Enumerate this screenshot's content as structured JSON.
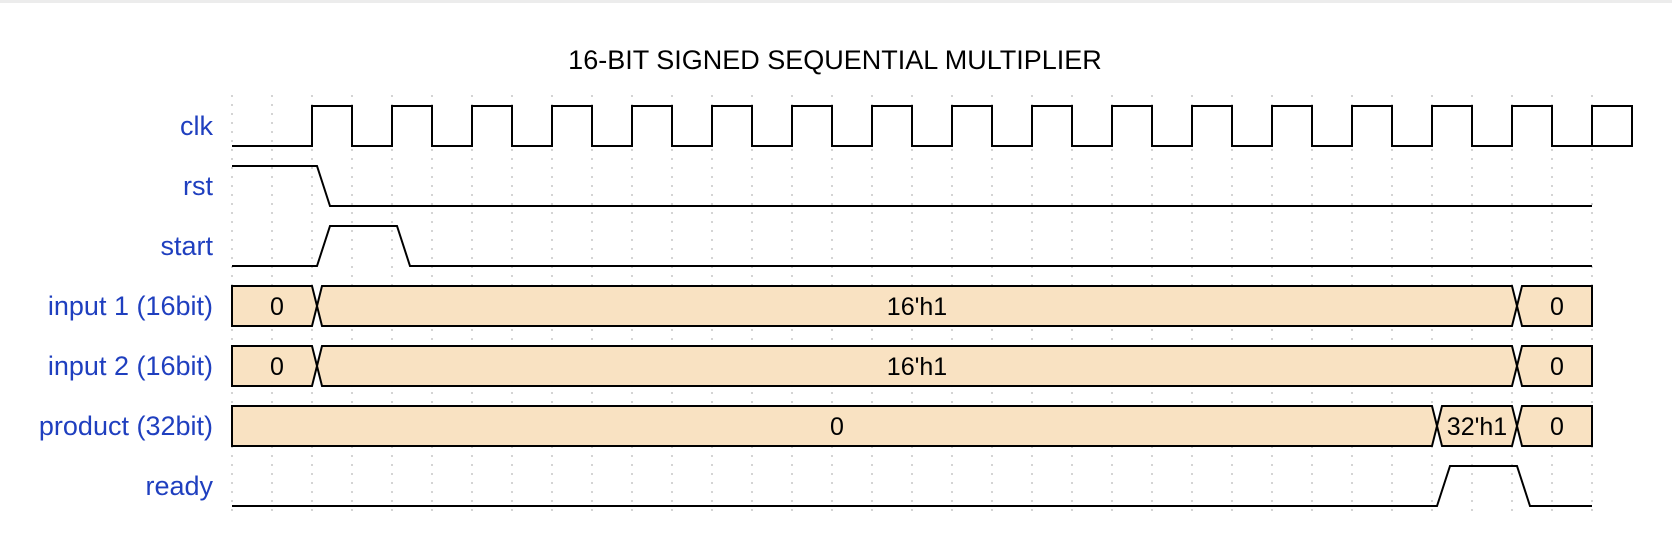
{
  "title": "16-BIT SIGNED SEQUENTIAL MULTIPLIER",
  "colors": {
    "bus_fill": "#f9e2c2",
    "label": "#1f3fbf",
    "trace": "#000000"
  },
  "timeline": {
    "cycles": 17
  },
  "signals": [
    {
      "name": "clk",
      "kind": "clock"
    },
    {
      "name": "rst",
      "kind": "bit",
      "wave": [
        1,
        0,
        0,
        0,
        0,
        0,
        0,
        0,
        0,
        0,
        0,
        0,
        0,
        0,
        0,
        0,
        0
      ]
    },
    {
      "name": "start",
      "kind": "bit",
      "wave": [
        0,
        1,
        0,
        0,
        0,
        0,
        0,
        0,
        0,
        0,
        0,
        0,
        0,
        0,
        0,
        0,
        0
      ]
    },
    {
      "name": "input 1 (16bit)",
      "kind": "bus",
      "segments": [
        {
          "start": 0,
          "end": 1,
          "value": "0"
        },
        {
          "start": 1,
          "end": 16,
          "value": "16'h1"
        },
        {
          "start": 16,
          "end": 17,
          "value": "0"
        }
      ]
    },
    {
      "name": "input 2 (16bit)",
      "kind": "bus",
      "segments": [
        {
          "start": 0,
          "end": 1,
          "value": "0"
        },
        {
          "start": 1,
          "end": 16,
          "value": "16'h1"
        },
        {
          "start": 16,
          "end": 17,
          "value": "0"
        }
      ]
    },
    {
      "name": "product (32bit)",
      "kind": "bus",
      "segments": [
        {
          "start": 0,
          "end": 15,
          "value": "0"
        },
        {
          "start": 15,
          "end": 16,
          "value": "32'h1"
        },
        {
          "start": 16,
          "end": 17,
          "value": "0"
        }
      ]
    },
    {
      "name": "ready",
      "kind": "bit",
      "wave": [
        0,
        0,
        0,
        0,
        0,
        0,
        0,
        0,
        0,
        0,
        0,
        0,
        0,
        0,
        0,
        1,
        0
      ]
    }
  ]
}
